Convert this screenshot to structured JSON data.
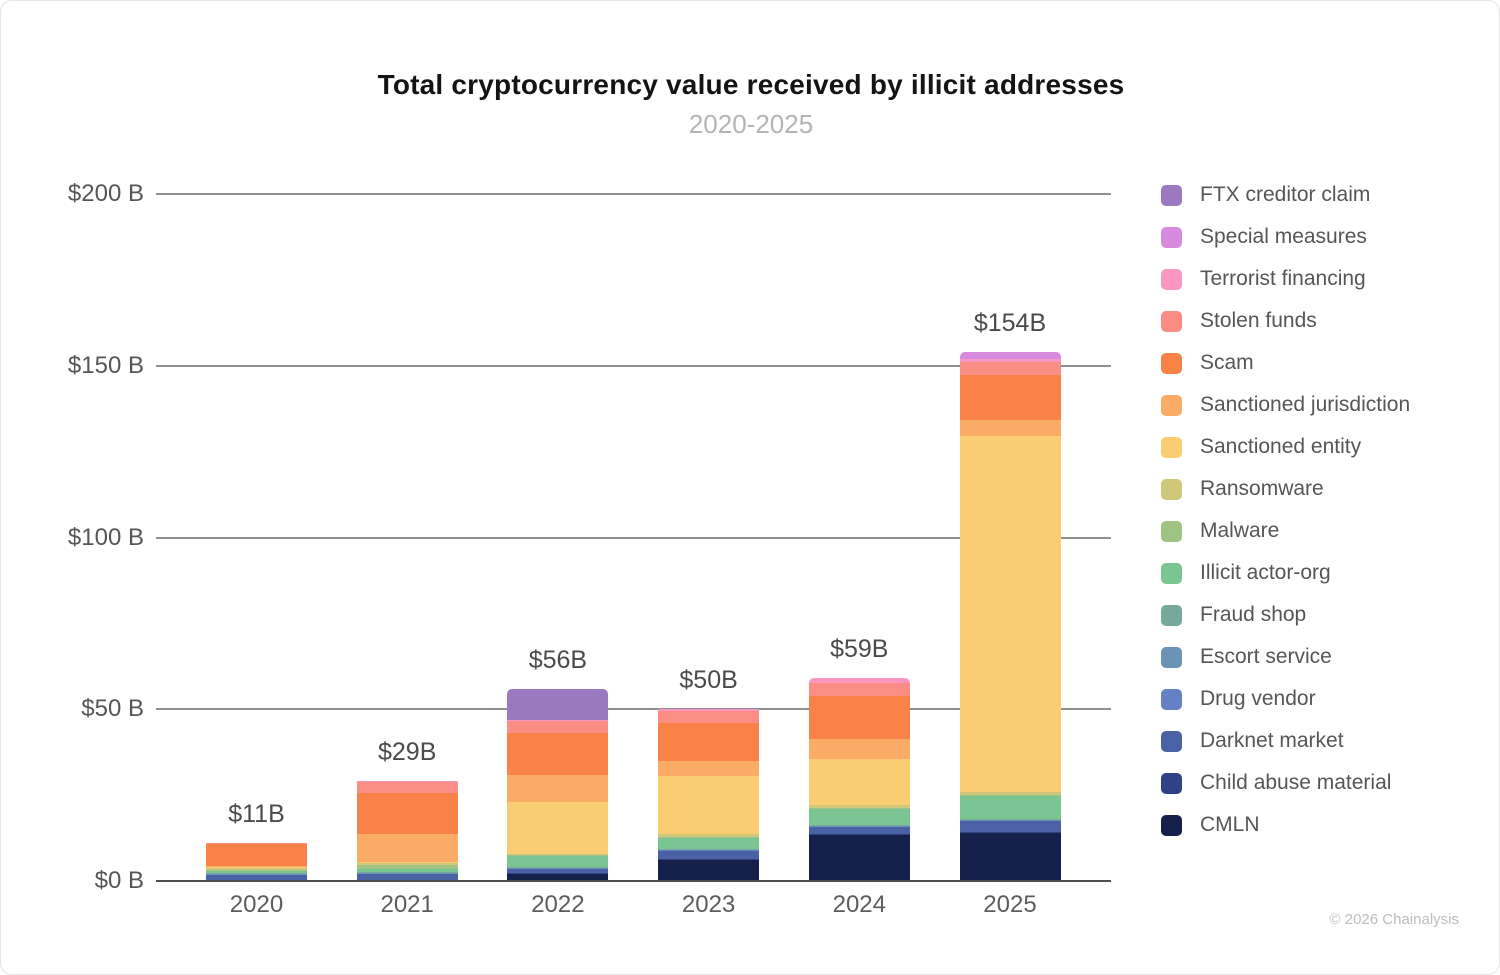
{
  "header": {
    "title": "Total cryptocurrency value received by illicit addresses",
    "subtitle": "2020-2025"
  },
  "footer": {
    "copyright": "© 2026 Chainalysis"
  },
  "chart_data": {
    "type": "bar",
    "stacked": true,
    "unit": "USD billions",
    "title": "Total cryptocurrency value received by illicit addresses",
    "subtitle": "2020-2025",
    "grid": true,
    "legend_position": "right",
    "ylim": [
      0,
      200
    ],
    "y_axis": {
      "tick_values": [
        0,
        50,
        100,
        150,
        200
      ],
      "tick_labels": [
        "$0 B",
        "$50 B",
        "$100 B",
        "$150 B",
        "$200 B"
      ]
    },
    "categories": [
      "2020",
      "2021",
      "2022",
      "2023",
      "2024",
      "2025"
    ],
    "bar_totals": [
      11,
      29,
      56,
      50,
      59,
      154
    ],
    "bar_total_labels": [
      "$11B",
      "$29B",
      "$56B",
      "$50B",
      "$59B",
      "$154B"
    ],
    "series": [
      {
        "name": "CMLN",
        "color": "#15204b",
        "values": [
          0,
          0,
          2.1,
          6.3,
          13.5,
          14.0
        ]
      },
      {
        "name": "Child abuse material",
        "color": "#2f4187",
        "values": [
          0.2,
          0.2,
          0.2,
          0.2,
          0.2,
          0.2
        ]
      },
      {
        "name": "Darknet market",
        "color": "#4a61a6",
        "values": [
          1.7,
          2.0,
          1.3,
          2.4,
          2.0,
          3.3
        ]
      },
      {
        "name": "Drug vendor",
        "color": "#6580c4",
        "values": [
          0.1,
          0.1,
          0.1,
          0.2,
          0.2,
          0.2
        ]
      },
      {
        "name": "Escort service",
        "color": "#6b93b5",
        "values": [
          0.1,
          0.1,
          0.1,
          0.1,
          0.1,
          0.1
        ]
      },
      {
        "name": "Fraud shop",
        "color": "#75a99c",
        "values": [
          0.3,
          0.2,
          0.2,
          0.2,
          0.2,
          0.2
        ]
      },
      {
        "name": "Illicit actor-org",
        "color": "#7bc592",
        "values": [
          0.6,
          1.0,
          3.2,
          3.0,
          4.8,
          6.8
        ]
      },
      {
        "name": "Malware",
        "color": "#9fc383",
        "values": [
          0.2,
          1.0,
          0.3,
          0.3,
          0.3,
          0.3
        ]
      },
      {
        "name": "Ransomware",
        "color": "#cfc87a",
        "values": [
          0.6,
          0.6,
          0.5,
          1.0,
          0.8,
          0.9
        ]
      },
      {
        "name": "Sanctioned entity",
        "color": "#facd72",
        "values": [
          0.3,
          0.4,
          15.0,
          17.0,
          13.5,
          103.5
        ]
      },
      {
        "name": "Sanctioned jurisdiction",
        "color": "#faac66",
        "values": [
          0.2,
          8.0,
          8.0,
          4.2,
          5.8,
          4.7
        ]
      },
      {
        "name": "Scam",
        "color": "#f98249",
        "values": [
          6.4,
          12.0,
          12.0,
          11.0,
          12.5,
          13.0
        ]
      },
      {
        "name": "Stolen funds",
        "color": "#fa8d84",
        "values": [
          0.3,
          3.3,
          3.8,
          3.6,
          3.6,
          4.0
        ]
      },
      {
        "name": "Terrorist financing",
        "color": "#fa96c2",
        "values": [
          0,
          0.1,
          0.1,
          0.5,
          1.5,
          0.7
        ]
      },
      {
        "name": "Special measures",
        "color": "#d78bdf",
        "values": [
          0,
          0,
          0,
          0,
          0,
          2.1
        ]
      },
      {
        "name": "FTX creditor claim",
        "color": "#9b79c1",
        "values": [
          0,
          0,
          9.1,
          0,
          0,
          0
        ]
      }
    ]
  }
}
